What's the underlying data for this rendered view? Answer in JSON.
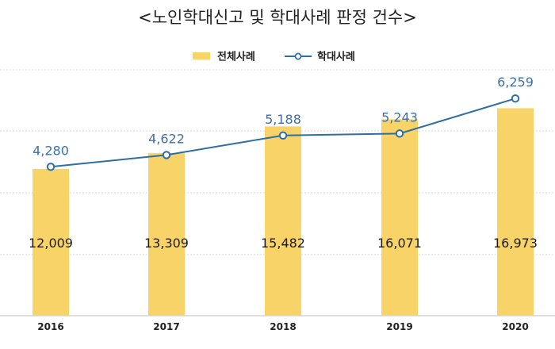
{
  "chart_data": {
    "type": "bar",
    "title": "<노인학대신고 및 학대사례 판정 건수>",
    "categories": [
      "2016",
      "2017",
      "2018",
      "2019",
      "2020"
    ],
    "series": [
      {
        "name": "전체사례",
        "type": "bar",
        "color": "#f8d368",
        "values": [
          12009,
          13309,
          15482,
          16071,
          16973
        ],
        "labels": [
          "12,009",
          "13,309",
          "15,482",
          "16,071",
          "16,973"
        ]
      },
      {
        "name": "학대사례",
        "type": "line",
        "color": "#2d6ea5",
        "values": [
          4280,
          4622,
          5188,
          5243,
          6259
        ],
        "labels": [
          "4,280",
          "4,622",
          "5,188",
          "5,243",
          "6,259"
        ]
      }
    ],
    "legend_position": "top-center",
    "grid": true,
    "xlabel": "",
    "ylabel": ""
  }
}
